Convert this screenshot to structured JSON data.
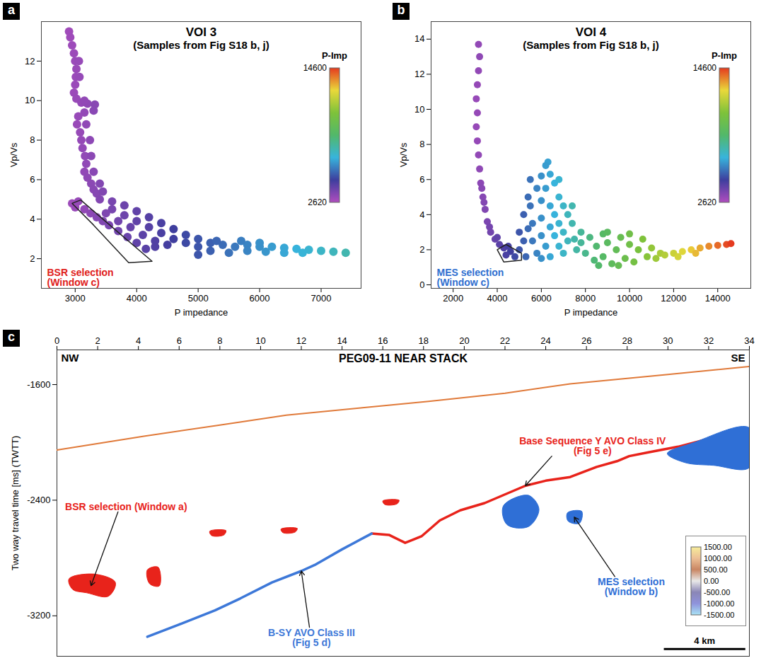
{
  "chart_data": [
    {
      "type": "scatter",
      "panel_label": "a",
      "title": "VOI 3",
      "subtitle": "(Samples from Fig S18 b, j)",
      "x_label": "P impedance",
      "y_label": "Vp/Vs",
      "xlim": [
        2450,
        7650
      ],
      "xticks": [
        3000,
        4000,
        5000,
        6000,
        7000
      ],
      "ylim": [
        0.5,
        14
      ],
      "yticks": [
        2,
        4,
        6,
        8,
        10,
        12
      ],
      "colorbar": {
        "label": "P-Imp",
        "range": [
          2620,
          14600
        ],
        "ticks": [
          2620,
          14600
        ],
        "colors": [
          "#b04dbf",
          "#3e3e9e",
          "#37b4dc",
          "#52b86a",
          "#7ec23a",
          "#e9d83a",
          "#e53b1f"
        ]
      },
      "points": {
        "x": [
          2900,
          2920,
          2950,
          2980,
          3000,
          3020,
          3010,
          3000,
          2980,
          3020,
          3100,
          3200,
          3320,
          3300,
          3150,
          3050,
          3030,
          3080,
          3100,
          3120,
          3160,
          3180,
          3150,
          3200,
          3260,
          3300,
          3350,
          3060,
          3070,
          3150,
          3180,
          3240,
          3260,
          3300,
          3400,
          3450,
          2950,
          3050,
          3000,
          3150,
          3250,
          3350,
          3450,
          3550,
          3700,
          3850,
          4000,
          4150,
          3400,
          3600,
          3800,
          4000,
          4200,
          4400,
          4600,
          4800,
          5000,
          3600,
          3800,
          4000,
          4200,
          4400,
          4600,
          4800,
          4300,
          4500,
          3700,
          3900,
          4100,
          4300,
          3500,
          5000,
          5200,
          5400,
          5600,
          5800,
          6000,
          6200,
          6400,
          6600,
          6800,
          5200,
          5500,
          5800,
          6100,
          6400,
          6700,
          5000,
          5300,
          5700,
          6000,
          7000,
          7200,
          7400
        ],
        "y": [
          13.5,
          13.2,
          12.8,
          12.4,
          12.0,
          11.6,
          11.2,
          10.8,
          10.4,
          10.1,
          9.9,
          9.85,
          9.8,
          9.5,
          9.4,
          9.2,
          8.8,
          8.4,
          8.0,
          7.6,
          7.2,
          6.8,
          6.4,
          6.1,
          5.8,
          5.5,
          5.3,
          12.0,
          11.2,
          10.0,
          8.8,
          8.0,
          7.2,
          6.4,
          5.8,
          5.4,
          4.8,
          4.9,
          4.6,
          4.5,
          4.3,
          4.1,
          3.9,
          3.7,
          3.4,
          3.1,
          2.8,
          2.5,
          5.0,
          4.9,
          4.7,
          4.4,
          4.1,
          3.8,
          3.5,
          3.2,
          3.0,
          4.5,
          4.2,
          3.9,
          3.6,
          3.3,
          3.0,
          2.8,
          2.6,
          2.7,
          3.9,
          3.6,
          3.2,
          2.9,
          4.3,
          2.6,
          2.8,
          2.7,
          2.6,
          2.7,
          2.6,
          2.6,
          2.55,
          2.5,
          2.45,
          2.4,
          2.3,
          2.4,
          2.35,
          2.3,
          2.3,
          2.2,
          2.9,
          2.9,
          2.8,
          2.4,
          2.35,
          2.3
        ]
      },
      "selection": {
        "label": [
          "BSR selection",
          "(Window c)"
        ],
        "color": "#e0201b",
        "x": [
          2950,
          3090,
          3600,
          4250,
          3870,
          3300
        ],
        "y": [
          4.8,
          4.97,
          3.6,
          1.87,
          1.8,
          3.7
        ]
      }
    },
    {
      "type": "scatter",
      "panel_label": "b",
      "title": "VOI 4",
      "subtitle": "(Samples from Fig S18 b, j)",
      "x_label": "P impedance",
      "y_label": "Vp/Vs",
      "xlim": [
        1000,
        15500
      ],
      "xticks": [
        2000,
        4000,
        6000,
        8000,
        10000,
        12000,
        14000
      ],
      "ylim": [
        -0.2,
        15
      ],
      "yticks": [
        0,
        2,
        4,
        6,
        8,
        10,
        12,
        14
      ],
      "colorbar": {
        "label": "P-Imp",
        "range": [
          2620,
          14600
        ],
        "ticks": [
          2620,
          14600
        ],
        "colors": [
          "#b04dbf",
          "#3e3e9e",
          "#37b4dc",
          "#52b86a",
          "#7ec23a",
          "#e9d83a",
          "#e53b1f"
        ]
      },
      "points": {
        "x": [
          3150,
          3200,
          3150,
          3100,
          3050,
          3100,
          3050,
          3100,
          3150,
          3200,
          3250,
          3350,
          3450,
          3550,
          3700,
          3900,
          4100,
          4300,
          4600,
          4400,
          4800,
          3300,
          3400,
          3650,
          4000,
          4500,
          5000,
          5000,
          5200,
          5400,
          5500,
          5600,
          5600,
          5800,
          5800,
          6000,
          6000,
          6000,
          6000,
          6200,
          6200,
          6300,
          6400,
          6400,
          6400,
          6400,
          6600,
          6600,
          6600,
          6800,
          6800,
          6800,
          7000,
          7000,
          7000,
          7200,
          7200,
          7400,
          7500,
          7600,
          5300,
          6000,
          7800,
          5500,
          6200,
          6800,
          7400,
          5200,
          5400,
          7800,
          8000,
          8200,
          8400,
          8500,
          8800,
          8800,
          9000,
          9200,
          9400,
          9600,
          9800,
          10000,
          10200,
          10400,
          10600,
          10800,
          11000,
          11200,
          8600,
          9500,
          10000,
          11400,
          9000,
          11600,
          12000,
          12400,
          12800,
          13200,
          13600,
          14000,
          14400,
          14600,
          12200,
          13000
        ],
        "y": [
          13.7,
          13.0,
          12.2,
          11.4,
          10.6,
          9.8,
          9.0,
          8.2,
          7.4,
          6.6,
          5.8,
          5.0,
          4.3,
          3.6,
          3.0,
          2.6,
          2.3,
          2.1,
          1.9,
          1.7,
          1.6,
          5.5,
          4.7,
          3.3,
          2.7,
          2.2,
          2.0,
          3.0,
          4.0,
          5.0,
          4.5,
          3.5,
          2.5,
          1.8,
          5.5,
          6.2,
          4.8,
          3.8,
          2.8,
          5.5,
          2.2,
          7.0,
          6.3,
          4.5,
          3.3,
          1.6,
          5.8,
          4.0,
          2.8,
          5.0,
          3.5,
          2.2,
          4.5,
          3.0,
          1.8,
          4.0,
          2.5,
          3.5,
          2.6,
          2.0,
          1.6,
          1.5,
          3.0,
          6.0,
          6.8,
          6.0,
          4.5,
          2.5,
          3.2,
          2.4,
          1.8,
          2.7,
          1.4,
          2.2,
          2.9,
          1.6,
          2.4,
          1.2,
          2.0,
          2.7,
          1.5,
          2.3,
          1.3,
          2.0,
          2.6,
          1.6,
          2.1,
          1.5,
          1.1,
          1.1,
          2.9,
          1.8,
          3.0,
          1.7,
          1.8,
          1.9,
          2.0,
          2.1,
          2.2,
          2.25,
          2.3,
          2.35,
          1.6,
          1.8
        ]
      },
      "selection": {
        "label": [
          "MES selection",
          "(Window c)"
        ],
        "color": "#2f6fd0",
        "x": [
          4000,
          4400,
          5100,
          5100,
          4300
        ],
        "y": [
          2.0,
          2.3,
          1.8,
          1.4,
          1.3
        ]
      }
    },
    {
      "type": "seismic_section",
      "panel_label": "c",
      "title": "PEG09-11 NEAR STACK",
      "left_label": "NW",
      "right_label": "SE",
      "y_label": "Two way travel time [ms] (TWTT)",
      "xlim": [
        0,
        34
      ],
      "xticks": [
        0,
        2,
        4,
        6,
        8,
        10,
        12,
        14,
        16,
        18,
        20,
        22,
        24,
        26,
        28,
        30,
        32,
        34
      ],
      "ylim": [
        -3480,
        -1360
      ],
      "yticks": [
        -1600,
        -2400,
        -3200
      ],
      "seafloor": {
        "color": "#e07a3a",
        "x": [
          0,
          4.27,
          8,
          11.26,
          15,
          18.25,
          22,
          25.2,
          30,
          34
        ],
        "y": [
          -2053,
          -1957,
          -1880,
          -1812,
          -1760,
          -1716,
          -1660,
          -1595,
          -1530,
          -1475
        ]
      },
      "horizons": [
        {
          "label": [
            "Base Sequence Y AVO Class IV",
            "(Fig 5 e)"
          ],
          "color": "#e8231b",
          "x": [
            15.45,
            16.3,
            17.1,
            17.9,
            18.8,
            19.8,
            21.0,
            22.0,
            23.0,
            24.0,
            25.2,
            26.5,
            27.5,
            28.1,
            29.0,
            30.5,
            32.0,
            34
          ],
          "y": [
            -2631,
            -2640,
            -2695,
            -2650,
            -2540,
            -2470,
            -2420,
            -2360,
            -2300,
            -2265,
            -2240,
            -2170,
            -2130,
            -2095,
            -2070,
            -2030,
            -1975,
            -1910
          ]
        },
        {
          "label": [
            "B-SY AVO Class III",
            "(Fig 5 d)"
          ],
          "color": "#3d78d8",
          "x": [
            4.44,
            6.0,
            7.76,
            9.0,
            10.56,
            12.0,
            12.66,
            14.0,
            15.45
          ],
          "y": [
            -3345,
            -3260,
            -3162,
            -3080,
            -2969,
            -2890,
            -2848,
            -2740,
            -2631
          ]
        }
      ],
      "selections": [
        {
          "label": [
            "BSR selection (Window a)"
          ],
          "color": "#e8231b",
          "patches": [
            {
              "x": [
                0.59,
                1.82,
                2.87,
                2.52,
                1.47,
                0.77
              ],
              "y": [
                -2945,
                -2911,
                -2969,
                -3065,
                -3041,
                -3017
              ]
            },
            {
              "x": [
                4.44,
                4.97,
                5.03,
                4.55
              ],
              "y": [
                -2882,
                -2863,
                -2993,
                -2978
              ]
            },
            {
              "x": [
                7.5,
                8.3,
                8.2,
                7.6
              ],
              "y": [
                -2615,
                -2610,
                -2640,
                -2645
              ]
            },
            {
              "x": [
                11.0,
                11.8,
                11.7,
                11.1
              ],
              "y": [
                -2600,
                -2595,
                -2620,
                -2625
              ]
            },
            {
              "x": [
                16.0,
                16.8,
                16.7,
                16.1
              ],
              "y": [
                -2405,
                -2400,
                -2425,
                -2430
              ]
            }
          ]
        },
        {
          "label": [
            "MES selection",
            "(Window b)"
          ],
          "color": "#2f6fd6",
          "patches": [
            {
              "x": [
                21.92,
                23.15,
                23.67,
                23.15,
                22.1
              ],
              "y": [
                -2439,
                -2366,
                -2463,
                -2583,
                -2569
              ]
            },
            {
              "x": [
                25.07,
                25.77,
                25.66,
                25.1
              ],
              "y": [
                -2487,
                -2477,
                -2559,
                -2545
              ]
            },
            {
              "x": [
                29.97,
                31.2,
                34,
                34,
                32.24,
                30.84
              ],
              "y": [
                -2077,
                -2005,
                -1899,
                -2174,
                -2159,
                -2140
              ]
            }
          ]
        }
      ],
      "amplitude_colorbar": {
        "range": [
          -1500,
          1500
        ],
        "ticks": [
          {
            "value": -1500,
            "label": "-1500.00"
          },
          {
            "value": -1000,
            "label": "-1000.00"
          },
          {
            "value": -500,
            "label": "-500.00"
          },
          {
            "value": 0,
            "label": "0.00"
          },
          {
            "value": 500,
            "label": "500.00"
          },
          {
            "value": 1000,
            "label": "1000.00"
          },
          {
            "value": 1500,
            "label": "1500.00"
          }
        ],
        "colors": [
          "#a9e3f5",
          "#8f93dc",
          "#8a86b6",
          "#e8e8e8",
          "#c98663",
          "#ecbf95",
          "#f7ec9a"
        ]
      },
      "scale_bar": {
        "length": 4,
        "label": "4 km"
      }
    }
  ]
}
